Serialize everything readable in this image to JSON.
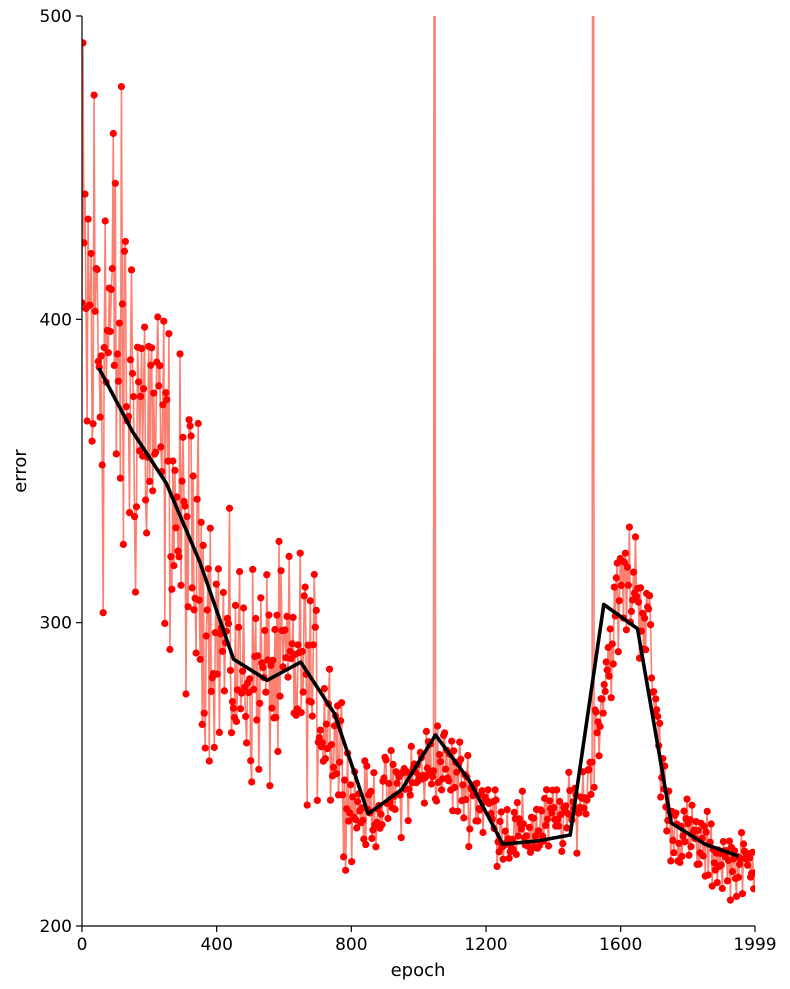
{
  "chart_data": {
    "type": "line",
    "title": "",
    "xlabel": "epoch",
    "ylabel": "error",
    "xlim": [
      0,
      1999
    ],
    "ylim": [
      200,
      500
    ],
    "xticks": [
      0,
      400,
      800,
      1200,
      1600,
      1999
    ],
    "yticks": [
      200,
      300,
      400,
      500
    ],
    "grid": false,
    "legend": "none",
    "colors": {
      "raw_line": "#fa8072",
      "raw_points": "#ff0000",
      "smoothed_line": "#000000"
    },
    "raw_profile": {
      "x": [
        0,
        50,
        100,
        150,
        200,
        250,
        300,
        350,
        400,
        450,
        500,
        550,
        600,
        650,
        700,
        750,
        800,
        850,
        900,
        950,
        1000,
        1050,
        1100,
        1150,
        1200,
        1250,
        1300,
        1350,
        1400,
        1450,
        1500,
        1550,
        1600,
        1640,
        1680,
        1700,
        1740,
        1800,
        1850,
        1900,
        1950,
        1999
      ],
      "y": [
        395,
        400,
        390,
        375,
        365,
        350,
        330,
        315,
        295,
        285,
        283,
        282,
        283,
        287,
        275,
        265,
        240,
        238,
        242,
        246,
        250,
        255,
        250,
        245,
        240,
        232,
        230,
        232,
        235,
        236,
        245,
        280,
        310,
        315,
        300,
        275,
        235,
        230,
        225,
        222,
        220,
        220
      ],
      "noise_amplitude": [
        170,
        160,
        130,
        110,
        95,
        80,
        75,
        70,
        60,
        55,
        55,
        55,
        55,
        55,
        50,
        45,
        25,
        20,
        20,
        22,
        22,
        22,
        22,
        22,
        20,
        18,
        18,
        18,
        18,
        18,
        18,
        22,
        30,
        32,
        28,
        25,
        18,
        18,
        18,
        16,
        15,
        15
      ]
    },
    "spikes": [
      {
        "x": 1047,
        "y": 760
      },
      {
        "x": 1518,
        "y": 820
      }
    ],
    "series": [
      {
        "x": [
          50,
          150,
          250,
          350,
          450,
          550,
          650,
          750,
          850,
          950,
          1050,
          1150,
          1250,
          1350,
          1450,
          1550,
          1650,
          1750,
          1850,
          1950
        ],
        "values": [
          384,
          363,
          346,
          320,
          288,
          281,
          287,
          270,
          237,
          245,
          263,
          248,
          227,
          228,
          230,
          306,
          298,
          234,
          227,
          223
        ]
      }
    ]
  }
}
